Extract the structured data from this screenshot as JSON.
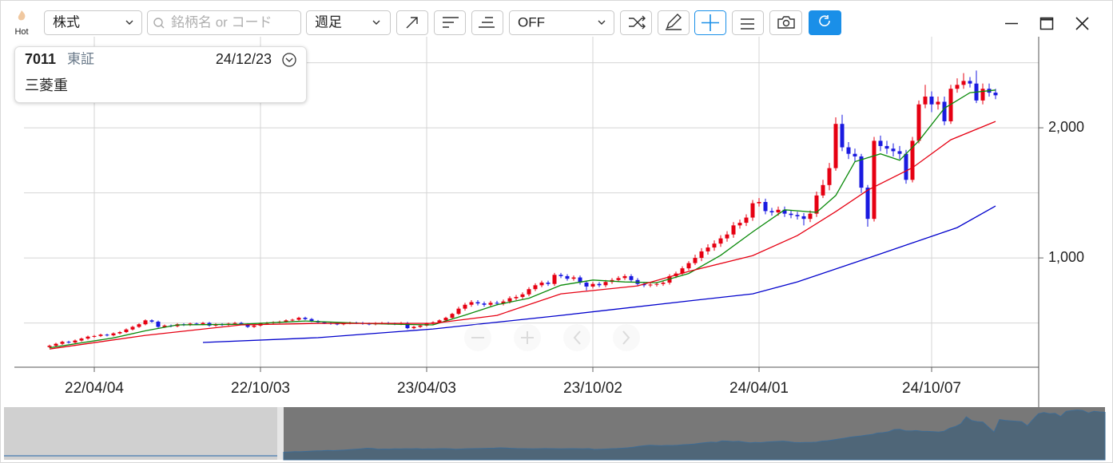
{
  "toolbar": {
    "hot": "Hot",
    "market": "株式",
    "search_placeholder": "銘柄名 or コード",
    "period": "週足",
    "mode": "OFF"
  },
  "info": {
    "code": "7011",
    "exchange": "東証",
    "date": "24/12/23",
    "name": "三菱重"
  },
  "chart_data": {
    "type": "candlestick",
    "up_color": "#e60012",
    "down_color": "#1a1ae0",
    "ohlc": [
      [
        315,
        333,
        307,
        325
      ],
      [
        325,
        348,
        317,
        340
      ],
      [
        340,
        363,
        332,
        355
      ],
      [
        355,
        363,
        342,
        350
      ],
      [
        350,
        373,
        342,
        365
      ],
      [
        365,
        388,
        357,
        380
      ],
      [
        380,
        403,
        372,
        395
      ],
      [
        395,
        408,
        387,
        400
      ],
      [
        400,
        418,
        392,
        410
      ],
      [
        410,
        418,
        397,
        405
      ],
      [
        405,
        428,
        397,
        420
      ],
      [
        420,
        438,
        412,
        430
      ],
      [
        430,
        458,
        422,
        450
      ],
      [
        450,
        478,
        442,
        470
      ],
      [
        470,
        498,
        462,
        490
      ],
      [
        490,
        528,
        482,
        520
      ],
      [
        520,
        528,
        502,
        510
      ],
      [
        510,
        518,
        462,
        470
      ],
      [
        470,
        488,
        462,
        480
      ],
      [
        480,
        488,
        467,
        475
      ],
      [
        475,
        498,
        467,
        490
      ],
      [
        490,
        498,
        477,
        485
      ],
      [
        485,
        503,
        477,
        495
      ],
      [
        495,
        503,
        482,
        490
      ],
      [
        490,
        508,
        482,
        500
      ],
      [
        500,
        508,
        472,
        480
      ],
      [
        480,
        498,
        472,
        490
      ],
      [
        490,
        498,
        477,
        485
      ],
      [
        485,
        503,
        477,
        495
      ],
      [
        495,
        508,
        487,
        500
      ],
      [
        500,
        508,
        482,
        490
      ],
      [
        490,
        498,
        462,
        470
      ],
      [
        470,
        488,
        462,
        480
      ],
      [
        480,
        503,
        472,
        495
      ],
      [
        495,
        508,
        487,
        500
      ],
      [
        500,
        513,
        492,
        505
      ],
      [
        505,
        518,
        497,
        510
      ],
      [
        510,
        528,
        502,
        520
      ],
      [
        520,
        533,
        512,
        525
      ],
      [
        525,
        548,
        517,
        540
      ],
      [
        540,
        548,
        522,
        530
      ],
      [
        530,
        538,
        507,
        515
      ],
      [
        515,
        523,
        497,
        505
      ],
      [
        505,
        513,
        492,
        500
      ],
      [
        500,
        508,
        487,
        495
      ],
      [
        495,
        503,
        482,
        490
      ],
      [
        490,
        506,
        482,
        498
      ],
      [
        498,
        510,
        490,
        502
      ],
      [
        502,
        510,
        492,
        500
      ],
      [
        500,
        508,
        487,
        495
      ],
      [
        495,
        503,
        482,
        490
      ],
      [
        490,
        506,
        482,
        498
      ],
      [
        498,
        508,
        490,
        500
      ],
      [
        500,
        508,
        487,
        495
      ],
      [
        495,
        503,
        484,
        492
      ],
      [
        492,
        508,
        484,
        500
      ],
      [
        500,
        508,
        452,
        460
      ],
      [
        460,
        478,
        452,
        470
      ],
      [
        470,
        488,
        462,
        480
      ],
      [
        480,
        503,
        472,
        495
      ],
      [
        495,
        513,
        487,
        505
      ],
      [
        505,
        528,
        497,
        520
      ],
      [
        520,
        548,
        512,
        540
      ],
      [
        540,
        578,
        532,
        570
      ],
      [
        570,
        625,
        562,
        610
      ],
      [
        610,
        655,
        595,
        640
      ],
      [
        640,
        675,
        625,
        660
      ],
      [
        660,
        675,
        635,
        650
      ],
      [
        650,
        665,
        625,
        640
      ],
      [
        640,
        670,
        625,
        655
      ],
      [
        655,
        670,
        635,
        650
      ],
      [
        650,
        680,
        635,
        665
      ],
      [
        665,
        705,
        650,
        690
      ],
      [
        690,
        715,
        675,
        700
      ],
      [
        700,
        735,
        685,
        720
      ],
      [
        720,
        775,
        705,
        760
      ],
      [
        760,
        805,
        745,
        790
      ],
      [
        790,
        825,
        775,
        810
      ],
      [
        810,
        825,
        785,
        800
      ],
      [
        800,
        885,
        785,
        870
      ],
      [
        870,
        885,
        845,
        860
      ],
      [
        860,
        875,
        825,
        840
      ],
      [
        840,
        865,
        825,
        850
      ],
      [
        850,
        865,
        795,
        810
      ],
      [
        810,
        825,
        750,
        780
      ],
      [
        780,
        815,
        765,
        800
      ],
      [
        800,
        815,
        775,
        790
      ],
      [
        790,
        830,
        775,
        815
      ],
      [
        815,
        845,
        800,
        830
      ],
      [
        830,
        860,
        815,
        845
      ],
      [
        845,
        875,
        830,
        860
      ],
      [
        860,
        875,
        815,
        830
      ],
      [
        830,
        845,
        785,
        800
      ],
      [
        800,
        815,
        775,
        790
      ],
      [
        790,
        810,
        775,
        795
      ],
      [
        795,
        815,
        780,
        800
      ],
      [
        800,
        825,
        785,
        810
      ],
      [
        810,
        875,
        795,
        860
      ],
      [
        860,
        895,
        845,
        880
      ],
      [
        880,
        935,
        865,
        920
      ],
      [
        920,
        975,
        905,
        960
      ],
      [
        960,
        1025,
        945,
        1000
      ],
      [
        1000,
        1075,
        975,
        1050
      ],
      [
        1050,
        1105,
        1025,
        1080
      ],
      [
        1080,
        1135,
        1055,
        1110
      ],
      [
        1110,
        1175,
        1085,
        1150
      ],
      [
        1150,
        1205,
        1125,
        1180
      ],
      [
        1180,
        1275,
        1155,
        1250
      ],
      [
        1250,
        1295,
        1225,
        1270
      ],
      [
        1270,
        1335,
        1245,
        1310
      ],
      [
        1310,
        1445,
        1285,
        1420
      ],
      [
        1420,
        1460,
        1395,
        1430
      ],
      [
        1430,
        1455,
        1335,
        1360
      ],
      [
        1360,
        1385,
        1325,
        1350
      ],
      [
        1350,
        1395,
        1325,
        1370
      ],
      [
        1370,
        1395,
        1315,
        1340
      ],
      [
        1340,
        1365,
        1305,
        1330
      ],
      [
        1330,
        1355,
        1295,
        1320
      ],
      [
        1320,
        1345,
        1250,
        1300
      ],
      [
        1300,
        1365,
        1275,
        1340
      ],
      [
        1340,
        1510,
        1315,
        1480
      ],
      [
        1480,
        1600,
        1460,
        1560
      ],
      [
        1560,
        1730,
        1520,
        1690
      ],
      [
        1690,
        2080,
        1670,
        2030
      ],
      [
        2030,
        2100,
        1820,
        1850
      ],
      [
        1850,
        1890,
        1760,
        1800
      ],
      [
        1800,
        1840,
        1740,
        1780
      ],
      [
        1780,
        1800,
        1500,
        1540
      ],
      [
        1540,
        1560,
        1240,
        1300
      ],
      [
        1300,
        1930,
        1280,
        1900
      ],
      [
        1900,
        1940,
        1820,
        1860
      ],
      [
        1860,
        1900,
        1800,
        1840
      ],
      [
        1840,
        1880,
        1780,
        1820
      ],
      [
        1820,
        1860,
        1760,
        1800
      ],
      [
        1800,
        1830,
        1570,
        1600
      ],
      [
        1600,
        1930,
        1580,
        1900
      ],
      [
        1900,
        2210,
        1880,
        2180
      ],
      [
        2180,
        2330,
        2150,
        2240
      ],
      [
        2240,
        2280,
        2120,
        2180
      ],
      [
        2180,
        2240,
        2140,
        2200
      ],
      [
        2200,
        2240,
        2020,
        2050
      ],
      [
        2050,
        2330,
        2030,
        2300
      ],
      [
        2300,
        2380,
        2270,
        2330
      ],
      [
        2330,
        2420,
        2300,
        2360
      ],
      [
        2360,
        2390,
        2310,
        2340
      ],
      [
        2340,
        2440,
        2190,
        2210
      ],
      [
        2210,
        2340,
        2180,
        2300
      ],
      [
        2300,
        2340,
        2240,
        2270
      ],
      [
        2270,
        2300,
        2220,
        2250
      ]
    ],
    "lines": [
      {
        "color": "#0a8a0a",
        "x": [
          0,
          10,
          15,
          20,
          30,
          40,
          50,
          56,
          60,
          65,
          70,
          75,
          80,
          85,
          90,
          95,
          100,
          105,
          110,
          115,
          120,
          123,
          126,
          130,
          133,
          136,
          140,
          144,
          148
        ],
        "values": [
          310,
          385,
          440,
          485,
          490,
          515,
          495,
          488,
          485,
          560,
          640,
          690,
          790,
          830,
          815,
          810,
          880,
          1020,
          1200,
          1370,
          1350,
          1480,
          1740,
          1800,
          1750,
          1900,
          2150,
          2270,
          2290
        ]
      },
      {
        "color": "#e60012",
        "x": [
          0,
          15,
          30,
          42,
          60,
          70,
          80,
          92,
          100,
          110,
          117,
          123,
          128,
          135,
          141,
          148
        ],
        "values": [
          300,
          405,
          485,
          497,
          497,
          558,
          724,
          785,
          896,
          1018,
          1172,
          1356,
          1521,
          1693,
          1908,
          2049
        ]
      },
      {
        "color": "#0000cc",
        "x": [
          24,
          42,
          60,
          80,
          100,
          110,
          117,
          130,
          142,
          148
        ],
        "values": [
          350,
          387,
          454,
          558,
          669,
          724,
          816,
          1031,
          1233,
          1399
        ]
      }
    ],
    "xlim": [
      -4,
      154.75
    ],
    "ylim": [
      160,
      2700
    ],
    "xticks": [
      {
        "value": 7,
        "label": "22/04/04"
      },
      {
        "value": 33,
        "label": "22/10/03"
      },
      {
        "value": 59,
        "label": "23/04/03"
      },
      {
        "value": 85,
        "label": "23/10/02"
      },
      {
        "value": 111,
        "label": "24/04/01"
      },
      {
        "value": 138,
        "label": "24/10/07"
      }
    ],
    "yticks": [
      {
        "value": 1000,
        "label": "1,000"
      },
      {
        "value": 2000,
        "label": "2,000"
      }
    ],
    "ygrid": [
      500,
      1000,
      1500,
      2000,
      2500
    ],
    "grid": true
  }
}
